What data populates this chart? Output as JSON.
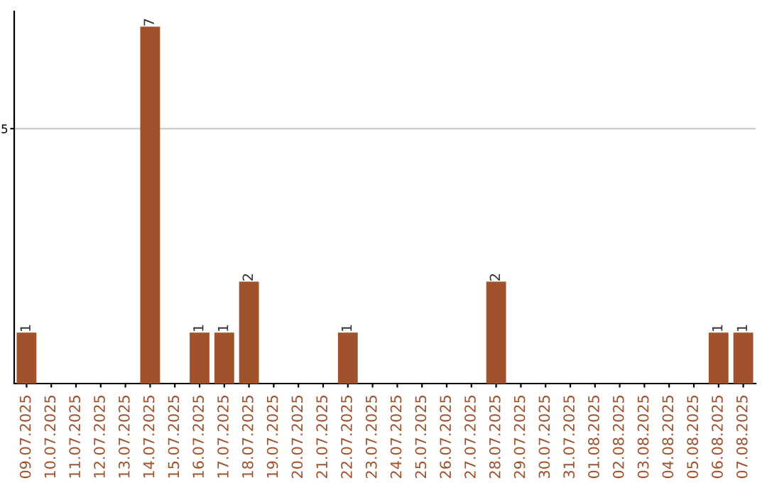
{
  "chart_data": {
    "type": "bar",
    "categories": [
      "09.07.2025",
      "10.07.2025",
      "11.07.2025",
      "12.07.2025",
      "13.07.2025",
      "14.07.2025",
      "15.07.2025",
      "16.07.2025",
      "17.07.2025",
      "18.07.2025",
      "19.07.2025",
      "20.07.2025",
      "21.07.2025",
      "22.07.2025",
      "23.07.2025",
      "24.07.2025",
      "25.07.2025",
      "26.07.2025",
      "27.07.2025",
      "28.07.2025",
      "29.07.2025",
      "30.07.2025",
      "31.07.2025",
      "01.08.2025",
      "02.08.2025",
      "03.08.2025",
      "04.08.2025",
      "05.08.2025",
      "06.08.2025",
      "07.08.2025"
    ],
    "values": [
      1,
      0,
      0,
      0,
      0,
      7,
      0,
      1,
      1,
      2,
      0,
      0,
      0,
      1,
      0,
      0,
      0,
      0,
      0,
      2,
      0,
      0,
      0,
      0,
      0,
      0,
      0,
      0,
      1,
      1
    ],
    "value_labels": [
      "1",
      null,
      null,
      null,
      null,
      "7",
      null,
      "1",
      "1",
      "2",
      null,
      null,
      null,
      "1",
      null,
      null,
      null,
      null,
      null,
      "2",
      null,
      null,
      null,
      null,
      null,
      null,
      null,
      null,
      "1",
      "1"
    ],
    "color": "#a0522d",
    "ylim": [
      0,
      7.3
    ],
    "yticks": [
      5
    ],
    "grid": "y"
  }
}
